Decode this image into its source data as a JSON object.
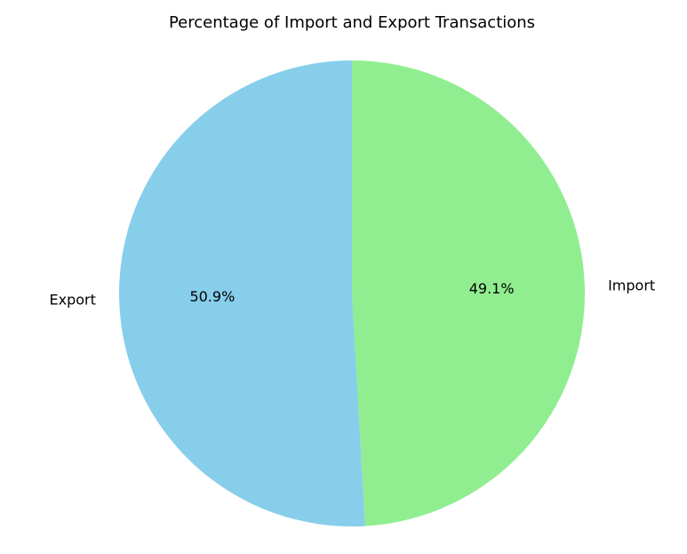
{
  "chart_data": {
    "type": "pie",
    "title": "Percentage of Import and Export Transactions",
    "slices": [
      {
        "label": "Import",
        "value": 49.1,
        "pct_label": "49.1%",
        "color": "#90EE90"
      },
      {
        "label": "Export",
        "value": 50.9,
        "pct_label": "50.9%",
        "color": "#87CEEB"
      }
    ],
    "start_angle": 90,
    "direction": "clockwise",
    "legend": "none"
  }
}
